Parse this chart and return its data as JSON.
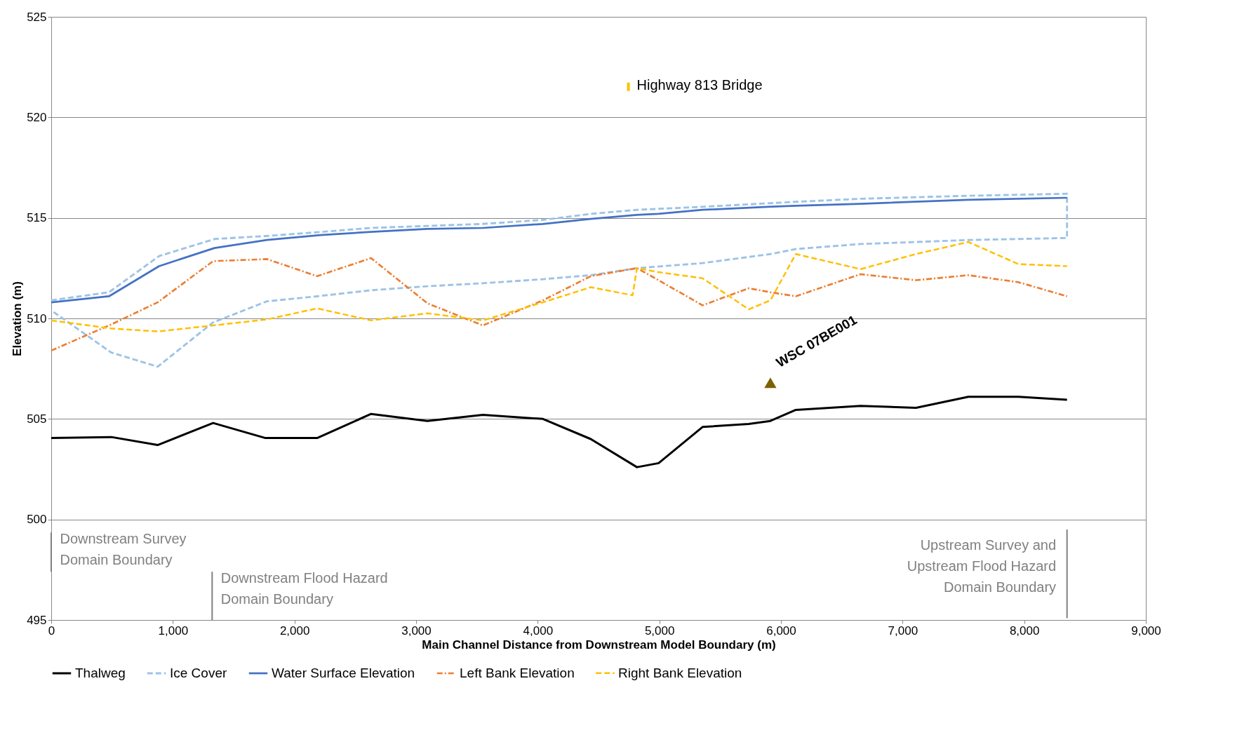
{
  "chart_data": {
    "type": "line",
    "xlabel": "Main Channel Distance from Downstream Model Boundary (m)",
    "ylabel": "Elevation (m)",
    "xlim": [
      0,
      9000
    ],
    "xticks": [
      0,
      {
        "value": 1000,
        "label": "1,000"
      },
      {
        "value": 2000,
        "label": "2,000"
      },
      {
        "value": 3000,
        "label": "3,000"
      },
      {
        "value": 4000,
        "label": "4,000"
      },
      {
        "value": 5000,
        "label": "5,000"
      },
      {
        "value": 6000,
        "label": "6,000"
      },
      {
        "value": 7000,
        "label": "7,000"
      },
      {
        "value": 8000,
        "label": "8,000"
      },
      {
        "value": 9000,
        "label": "9,000"
      }
    ],
    "ylim": [
      495,
      525
    ],
    "yticks": [
      495,
      500,
      505,
      510,
      515,
      520,
      525
    ],
    "grid": "y",
    "legend": "bottom",
    "marker": "none",
    "series": [
      {
        "name": "Thalweg",
        "color": "#000000",
        "line_style": "solid",
        "x": [
          0,
          494,
          875,
          1331,
          1762,
          2186,
          2630,
          3093,
          3549,
          4043,
          4436,
          4816,
          4994,
          5355,
          5735,
          5913,
          6122,
          6654,
          7110,
          7541,
          7953,
          8352
        ],
        "values": [
          504.05,
          504.1,
          503.7,
          504.8,
          504.05,
          504.05,
          505.25,
          504.9,
          505.2,
          505.0,
          504.0,
          502.6,
          502.8,
          504.6,
          504.75,
          504.9,
          505.45,
          505.65,
          505.55,
          506.1,
          506.1,
          505.95
        ]
      },
      {
        "name": "Ice Cover",
        "color": "#9dc3e6",
        "line_style": "dashed",
        "x": [
          0,
          475,
          887,
          1343,
          1774,
          2218,
          2630,
          3093,
          3549,
          4043,
          4436,
          4816,
          5355,
          6122,
          6654,
          7541,
          8352,
          8352,
          7541,
          7110,
          6654,
          6122,
          5913,
          5355,
          4816,
          4436,
          4043,
          3549,
          3093,
          2630,
          2186,
          1774,
          1331,
          875,
          494,
          0
        ],
        "values": [
          510.9,
          511.3,
          513.1,
          513.95,
          514.1,
          514.3,
          514.5,
          514.6,
          514.7,
          514.9,
          515.2,
          515.4,
          515.55,
          515.8,
          515.95,
          516.1,
          516.2,
          514.0,
          513.9,
          513.8,
          513.7,
          513.45,
          513.2,
          512.75,
          512.5,
          512.15,
          511.95,
          511.75,
          511.6,
          511.4,
          511.1,
          510.85,
          509.8,
          507.6,
          508.3,
          510.4
        ]
      },
      {
        "name": "Water Surface Elevation",
        "color": "#4472c4",
        "line_style": "solid",
        "x": [
          0,
          475,
          887,
          1343,
          1774,
          2218,
          2630,
          3093,
          3549,
          4043,
          4436,
          4816,
          4994,
          5355,
          5894,
          6122,
          6654,
          7541,
          8352
        ],
        "values": [
          510.8,
          511.1,
          512.6,
          513.5,
          513.9,
          514.15,
          514.3,
          514.45,
          514.5,
          514.7,
          514.95,
          515.15,
          515.2,
          515.4,
          515.55,
          515.6,
          515.7,
          515.9,
          516.0
        ]
      },
      {
        "name": "Left Bank Elevation",
        "color": "#ed7d31",
        "line_style": "dashdot",
        "x": [
          0,
          494,
          875,
          1331,
          1774,
          2186,
          2630,
          3093,
          3549,
          4043,
          4436,
          4816,
          4994,
          5355,
          5735,
          5913,
          6122,
          6654,
          7110,
          7541,
          7953,
          8352
        ],
        "values": [
          508.4,
          509.7,
          510.8,
          512.85,
          512.95,
          512.1,
          513.0,
          510.75,
          509.65,
          510.9,
          512.1,
          512.5,
          511.9,
          510.65,
          511.5,
          511.3,
          511.1,
          512.2,
          511.9,
          512.15,
          511.8,
          511.1
        ]
      },
      {
        "name": "Right Bank Elevation",
        "color": "#ffc000",
        "line_style": "dashed",
        "x": [
          0,
          494,
          875,
          1331,
          1774,
          2186,
          2630,
          3093,
          3549,
          4043,
          4436,
          4780,
          4816,
          4994,
          5355,
          5735,
          5913,
          6122,
          6654,
          7110,
          7541,
          7953,
          8352
        ],
        "values": [
          509.9,
          509.5,
          509.35,
          509.65,
          509.95,
          510.5,
          509.9,
          510.25,
          509.9,
          510.8,
          511.55,
          511.15,
          512.5,
          512.3,
          512.0,
          510.45,
          510.9,
          513.2,
          512.45,
          513.2,
          513.8,
          512.7,
          512.6
        ]
      },
      {
        "type": "scatter",
        "marker": "triangle",
        "color": "#7f6000",
        "x": [
          5913
        ],
        "values": [
          506.8
        ]
      }
    ],
    "annotations": [
      "Highway 813 Bridge",
      {
        "text": "WSC 07BE001",
        "x": 5913,
        "y": 506.8
      },
      "Downstream Survey\nDomain Boundary",
      "Downstream Flood Hazard\nDomain Boundary",
      "Upstream Survey and\nUpstream Flood Hazard\nDomain Boundary"
    ]
  }
}
